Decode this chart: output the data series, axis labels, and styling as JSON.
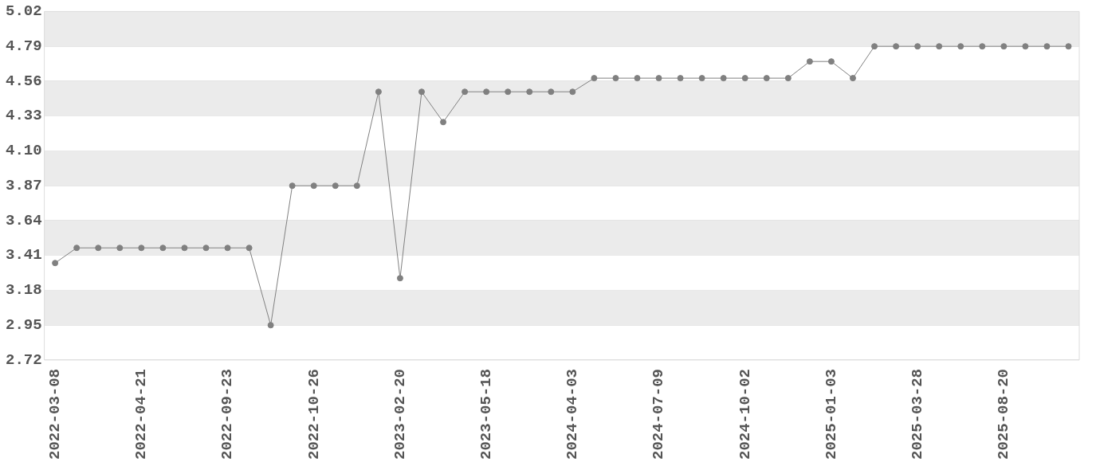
{
  "chart_data": {
    "type": "line",
    "categories": [
      "2022-03-08",
      null,
      null,
      null,
      "2022-04-21",
      null,
      null,
      null,
      "2022-09-23",
      null,
      null,
      null,
      "2022-10-26",
      null,
      null,
      null,
      "2023-02-20",
      null,
      null,
      null,
      "2023-05-18",
      null,
      null,
      null,
      "2024-04-03",
      null,
      null,
      null,
      "2024-07-09",
      null,
      null,
      null,
      "2024-10-02",
      null,
      null,
      null,
      "2025-01-03",
      null,
      null,
      null,
      "2025-03-28",
      null,
      null,
      null,
      "2025-08-20",
      null,
      null,
      null
    ],
    "series": [
      {
        "color": "#808080",
        "values": [
          3.36,
          3.46,
          3.46,
          3.46,
          3.46,
          3.46,
          3.46,
          3.46,
          3.46,
          3.46,
          2.95,
          3.87,
          3.87,
          3.87,
          3.87,
          4.49,
          3.26,
          4.49,
          4.29,
          4.49,
          4.49,
          4.49,
          4.49,
          4.49,
          4.49,
          4.58,
          4.58,
          4.58,
          4.58,
          4.58,
          4.58,
          4.58,
          4.58,
          4.58,
          4.58,
          4.69,
          4.69,
          4.58,
          4.79,
          4.79,
          4.79,
          4.79,
          4.79,
          4.79,
          4.79,
          4.79,
          4.79,
          4.79
        ]
      }
    ],
    "ylim": [
      2.72,
      5.02
    ],
    "yticks": [
      2.72,
      2.95,
      3.18,
      3.41,
      3.64,
      3.87,
      {
        "value": 4.1,
        "label": "4.10"
      },
      4.33,
      4.56,
      4.79,
      5.02
    ],
    "grid": true,
    "legend": false,
    "marker": "circle",
    "line_style": "solid"
  }
}
